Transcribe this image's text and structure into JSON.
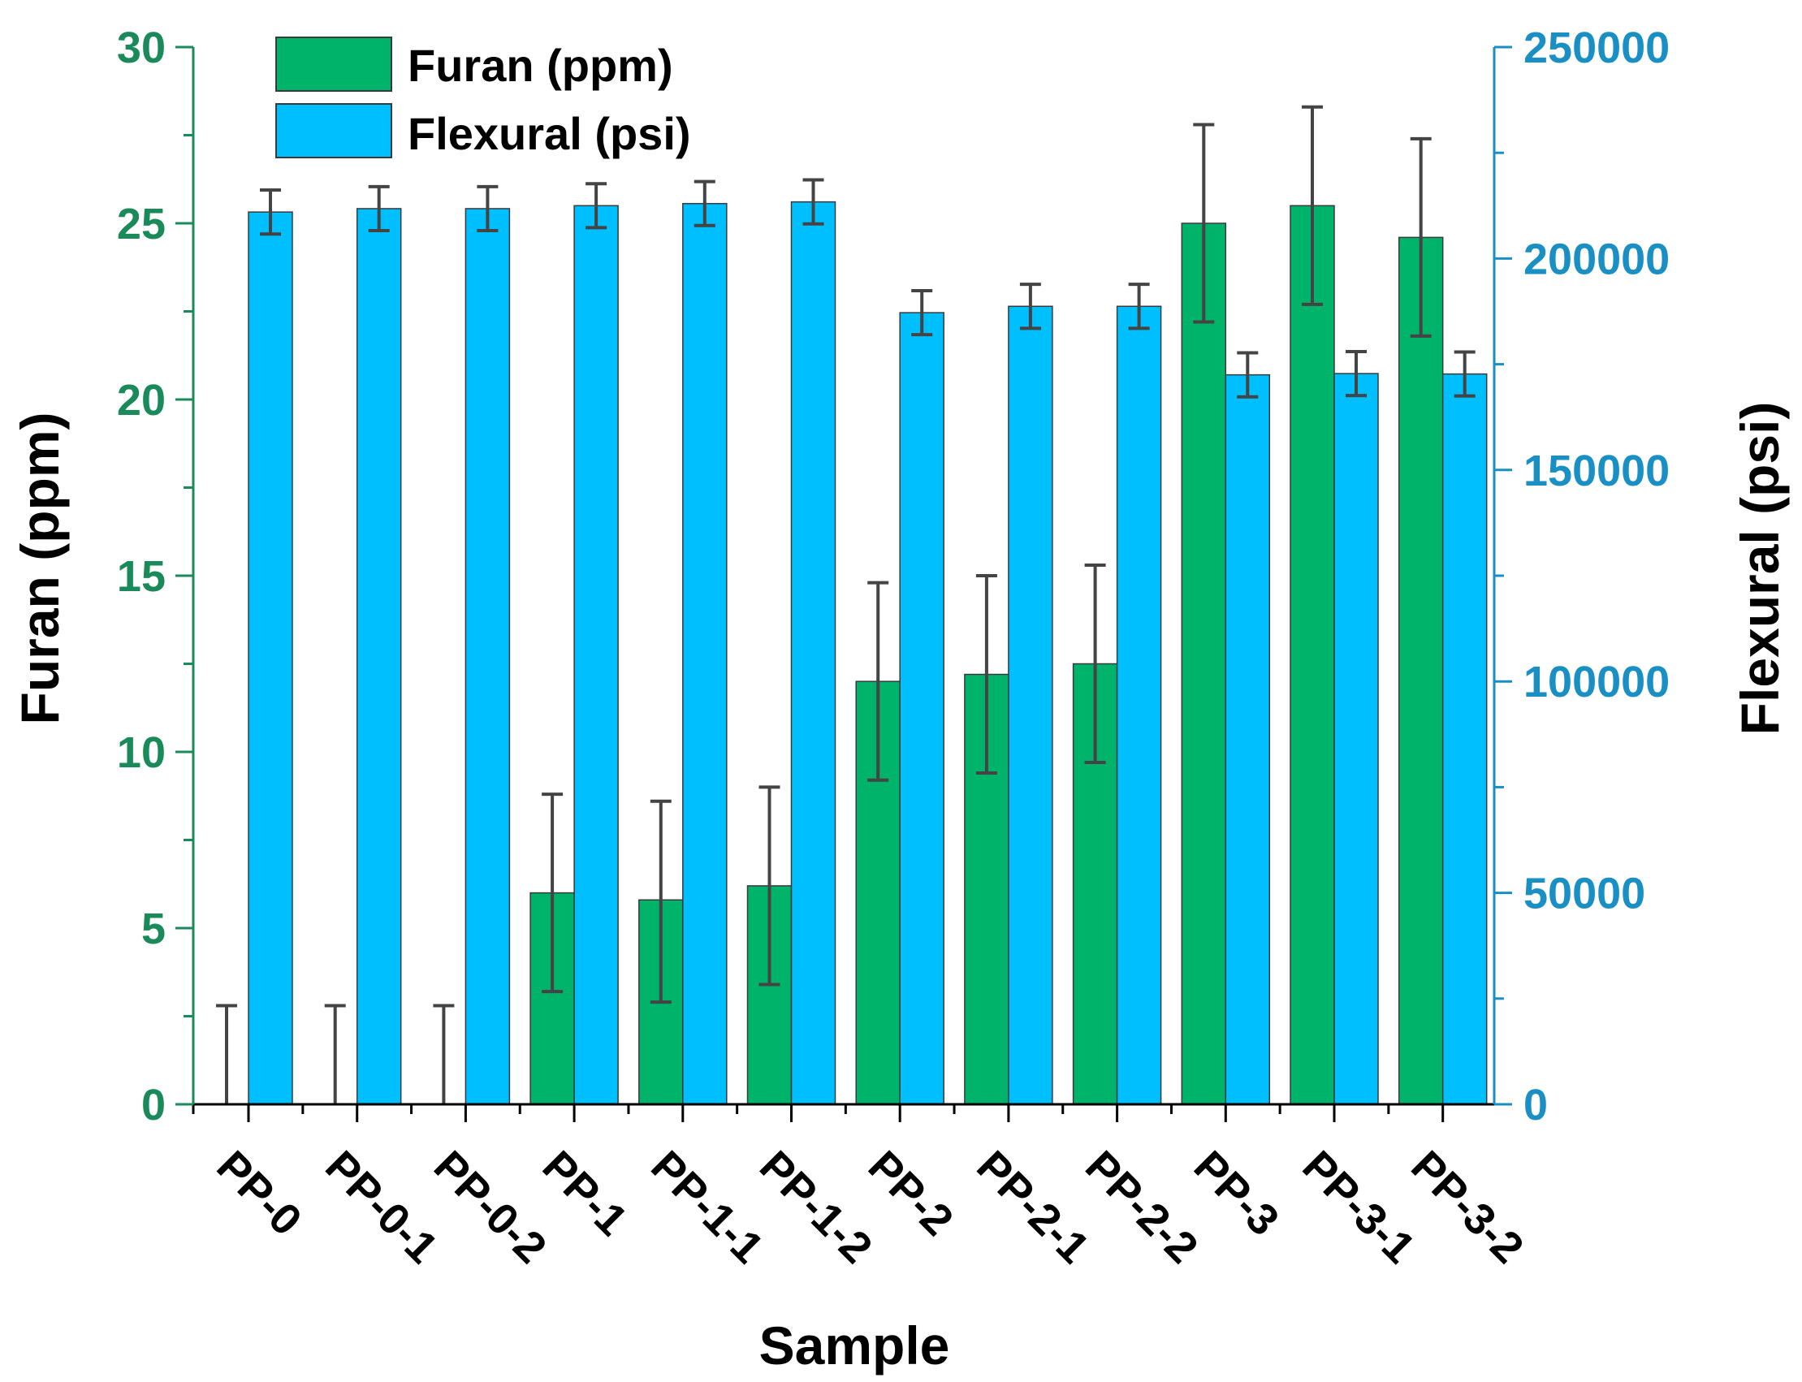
{
  "colors": {
    "furan": "#00b36b",
    "flexural": "#00bfff",
    "left_axis": "#1a8a5a",
    "right_axis": "#1a8fc4",
    "error_bar": "#444444",
    "bar_outline": "#3a3a3a",
    "axis_title": "#000000"
  },
  "chart_data": {
    "type": "bar",
    "xlabel": "Sample",
    "ylabel_left": "Furan (ppm)",
    "ylabel_right": "Flexural (psi)",
    "ylim_left": [
      0,
      30
    ],
    "ylim_right": [
      0,
      250000
    ],
    "yticks_left": [
      "0",
      "5",
      "10",
      "15",
      "20",
      "25",
      "30"
    ],
    "yticks_right": [
      "0",
      "50000",
      "100000",
      "150000",
      "200000",
      "250000"
    ],
    "categories": [
      "PP-0",
      "PP-0-1",
      "PP-0-2",
      "PP-1",
      "PP-1-1",
      "PP-1-2",
      "PP-2",
      "PP-2-1",
      "PP-2-2",
      "PP-3",
      "PP-3-1",
      "PP-3-2"
    ],
    "legend": [
      "Furan (ppm)",
      "Flexural (psi)"
    ],
    "legend_position": "top-left",
    "series": [
      {
        "name": "Furan (ppm)",
        "axis": "left",
        "values": [
          0,
          0,
          0,
          6.0,
          5.8,
          6.2,
          12.0,
          12.2,
          12.5,
          25.0,
          25.5,
          24.6
        ],
        "err_low": [
          0,
          0,
          0,
          3.2,
          2.9,
          3.4,
          9.2,
          9.4,
          9.7,
          22.2,
          22.7,
          21.8
        ],
        "err_high": [
          2.8,
          2.8,
          2.8,
          8.8,
          8.6,
          9.0,
          14.8,
          15.0,
          15.3,
          27.8,
          28.3,
          27.4
        ]
      },
      {
        "name": "Flexural (psi)",
        "axis": "right",
        "values": [
          211000,
          211800,
          211800,
          212500,
          213000,
          213400,
          187200,
          188700,
          188700,
          172500,
          172800,
          172700
        ],
        "err_low": [
          205800,
          206600,
          206600,
          207300,
          207800,
          208200,
          182000,
          183500,
          183500,
          167300,
          167600,
          167500
        ],
        "err_high": [
          216200,
          217000,
          217000,
          217700,
          218200,
          218600,
          192400,
          193900,
          193900,
          177700,
          178000,
          177900
        ]
      }
    ]
  }
}
